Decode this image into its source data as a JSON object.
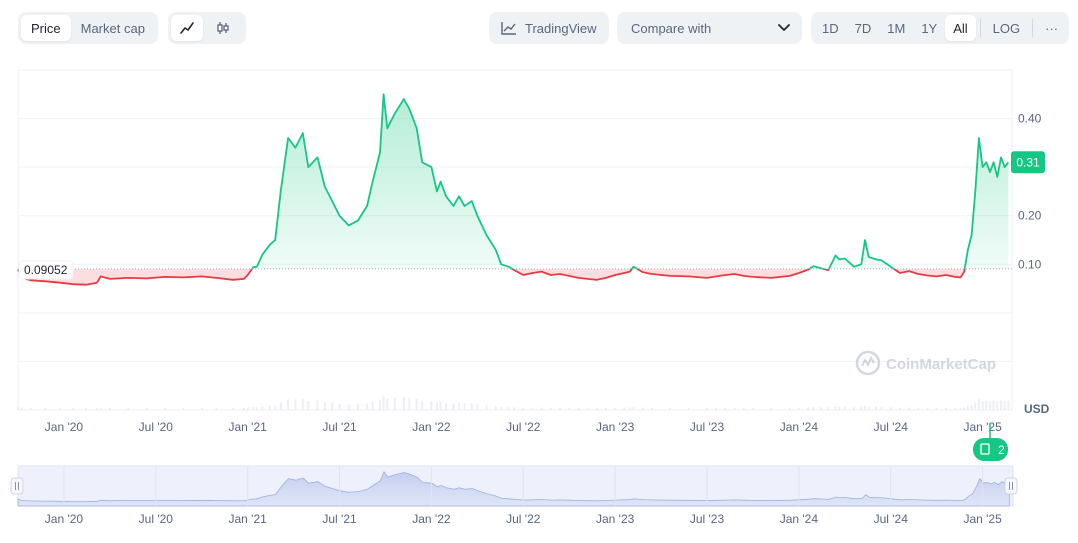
{
  "toolbar": {
    "type_options": [
      "Price",
      "Market cap"
    ],
    "type_active": "Price",
    "style_icons": [
      "line-chart-icon",
      "candlestick-icon"
    ],
    "tradingview_label": "TradingView",
    "compare_label": "Compare with",
    "ranges": [
      "1D",
      "7D",
      "1M",
      "1Y",
      "All"
    ],
    "range_active": "All",
    "log_label": "LOG",
    "more_label": "···"
  },
  "watermark": "CoinMarketCap",
  "events_badge": "2",
  "chart_data": {
    "type": "area",
    "currency": "USD",
    "baseline_value": 0.09052,
    "baseline_label": "0.09052",
    "current_value": 0.31,
    "current_label": "0.31",
    "y_ticks": [
      0.1,
      0.2,
      0.4
    ],
    "y_tick_labels": [
      "0.10",
      "0.20",
      "0.40"
    ],
    "x_tick_labels": [
      "Jan '20",
      "Jul '20",
      "Jan '21",
      "Jul '21",
      "Jan '22",
      "Jul '22",
      "Jan '23",
      "Jul '23",
      "Jan '24",
      "Jul '24",
      "Jan '25"
    ],
    "colors": {
      "above": "#16c784",
      "below": "#ea3943"
    },
    "series": [
      {
        "values": [
          [
            2019.75,
            0.09
          ],
          [
            2019.77,
            0.072
          ],
          [
            2019.82,
            0.067
          ],
          [
            2019.9,
            0.065
          ],
          [
            2019.98,
            0.062
          ],
          [
            2020.05,
            0.059
          ],
          [
            2020.12,
            0.058
          ],
          [
            2020.18,
            0.062
          ],
          [
            2020.2,
            0.075
          ],
          [
            2020.25,
            0.07
          ],
          [
            2020.35,
            0.072
          ],
          [
            2020.45,
            0.071
          ],
          [
            2020.55,
            0.074
          ],
          [
            2020.65,
            0.073
          ],
          [
            2020.75,
            0.075
          ],
          [
            2020.83,
            0.072
          ],
          [
            2020.92,
            0.068
          ],
          [
            2020.98,
            0.07
          ],
          [
            2021.0,
            0.078
          ],
          [
            2021.03,
            0.094
          ],
          [
            2021.05,
            0.095
          ],
          [
            2021.08,
            0.12
          ],
          [
            2021.12,
            0.14
          ],
          [
            2021.15,
            0.15
          ],
          [
            2021.18,
            0.25
          ],
          [
            2021.22,
            0.36
          ],
          [
            2021.26,
            0.34
          ],
          [
            2021.3,
            0.37
          ],
          [
            2021.33,
            0.3
          ],
          [
            2021.38,
            0.32
          ],
          [
            2021.42,
            0.26
          ],
          [
            2021.46,
            0.23
          ],
          [
            2021.5,
            0.2
          ],
          [
            2021.55,
            0.18
          ],
          [
            2021.6,
            0.19
          ],
          [
            2021.65,
            0.22
          ],
          [
            2021.68,
            0.27
          ],
          [
            2021.72,
            0.33
          ],
          [
            2021.74,
            0.45
          ],
          [
            2021.76,
            0.38
          ],
          [
            2021.8,
            0.41
          ],
          [
            2021.85,
            0.44
          ],
          [
            2021.88,
            0.42
          ],
          [
            2021.92,
            0.38
          ],
          [
            2021.95,
            0.31
          ],
          [
            2022.0,
            0.3
          ],
          [
            2022.03,
            0.25
          ],
          [
            2022.05,
            0.27
          ],
          [
            2022.08,
            0.24
          ],
          [
            2022.12,
            0.22
          ],
          [
            2022.15,
            0.24
          ],
          [
            2022.18,
            0.22
          ],
          [
            2022.22,
            0.23
          ],
          [
            2022.25,
            0.2
          ],
          [
            2022.3,
            0.16
          ],
          [
            2022.35,
            0.13
          ],
          [
            2022.38,
            0.1
          ],
          [
            2022.42,
            0.095
          ],
          [
            2022.45,
            0.088
          ],
          [
            2022.5,
            0.078
          ],
          [
            2022.55,
            0.082
          ],
          [
            2022.6,
            0.085
          ],
          [
            2022.65,
            0.078
          ],
          [
            2022.7,
            0.08
          ],
          [
            2022.75,
            0.076
          ],
          [
            2022.8,
            0.072
          ],
          [
            2022.85,
            0.07
          ],
          [
            2022.9,
            0.068
          ],
          [
            2022.95,
            0.072
          ],
          [
            2023.0,
            0.078
          ],
          [
            2023.05,
            0.082
          ],
          [
            2023.08,
            0.085
          ],
          [
            2023.1,
            0.095
          ],
          [
            2023.15,
            0.084
          ],
          [
            2023.2,
            0.08
          ],
          [
            2023.3,
            0.076
          ],
          [
            2023.4,
            0.075
          ],
          [
            2023.5,
            0.072
          ],
          [
            2023.55,
            0.075
          ],
          [
            2023.6,
            0.078
          ],
          [
            2023.65,
            0.08
          ],
          [
            2023.7,
            0.076
          ],
          [
            2023.75,
            0.074
          ],
          [
            2023.85,
            0.072
          ],
          [
            2023.95,
            0.076
          ],
          [
            2024.0,
            0.082
          ],
          [
            2024.05,
            0.089
          ],
          [
            2024.08,
            0.096
          ],
          [
            2024.12,
            0.092
          ],
          [
            2024.16,
            0.088
          ],
          [
            2024.2,
            0.118
          ],
          [
            2024.22,
            0.11
          ],
          [
            2024.25,
            0.112
          ],
          [
            2024.3,
            0.095
          ],
          [
            2024.34,
            0.1
          ],
          [
            2024.36,
            0.15
          ],
          [
            2024.38,
            0.115
          ],
          [
            2024.42,
            0.11
          ],
          [
            2024.45,
            0.108
          ],
          [
            2024.5,
            0.095
          ],
          [
            2024.55,
            0.082
          ],
          [
            2024.6,
            0.086
          ],
          [
            2024.65,
            0.08
          ],
          [
            2024.7,
            0.077
          ],
          [
            2024.75,
            0.075
          ],
          [
            2024.8,
            0.078
          ],
          [
            2024.85,
            0.074
          ],
          [
            2024.88,
            0.073
          ],
          [
            2024.9,
            0.085
          ],
          [
            2024.92,
            0.13
          ],
          [
            2024.94,
            0.16
          ],
          [
            2024.96,
            0.25
          ],
          [
            2024.98,
            0.36
          ],
          [
            2025.0,
            0.3
          ],
          [
            2025.02,
            0.31
          ],
          [
            2025.04,
            0.29
          ],
          [
            2025.06,
            0.31
          ],
          [
            2025.08,
            0.28
          ],
          [
            2025.1,
            0.32
          ],
          [
            2025.12,
            0.3
          ],
          [
            2025.14,
            0.31
          ]
        ]
      }
    ],
    "volume_range_note": ""
  }
}
